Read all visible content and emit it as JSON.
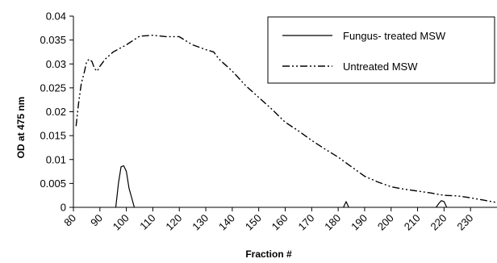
{
  "chart_data": {
    "type": "line",
    "xlabel": "Fraction #",
    "ylabel": "OD at 475 nm",
    "xlim": [
      80,
      240
    ],
    "ylim": [
      0,
      0.04
    ],
    "x_ticks": [
      "80",
      "90",
      "100",
      "110",
      "120",
      "130",
      "140",
      "150",
      "160",
      "170",
      "180",
      "190",
      "200",
      "210",
      "220",
      "230"
    ],
    "y_ticks": [
      "0",
      "0.005",
      "0.01",
      "0.015",
      "0.02",
      "0.025",
      "0.03",
      "0.035",
      "0.04"
    ],
    "grid": false,
    "legend_position": "top-right",
    "series": [
      {
        "name": "Fungus- treated MSW",
        "line_style": "solid",
        "segments": [
          [
            [
              96,
              0
            ],
            [
              97,
              0.005
            ],
            [
              98,
              0.0085
            ],
            [
              99,
              0.0087
            ],
            [
              100,
              0.0075
            ],
            [
              101,
              0.004
            ],
            [
              102,
              0.002
            ],
            [
              103,
              0
            ]
          ],
          [
            [
              182,
              0
            ],
            [
              183,
              0.0012
            ],
            [
              184,
              0
            ]
          ],
          [
            [
              217,
              0
            ],
            [
              218,
              0.0008
            ],
            [
              219,
              0.0014
            ],
            [
              220,
              0.0012
            ],
            [
              221,
              0
            ]
          ]
        ]
      },
      {
        "name": "Untreated MSW",
        "line_style": "dash-dot-dot",
        "points": [
          [
            81,
            0.017
          ],
          [
            82,
            0.022
          ],
          [
            83,
            0.026
          ],
          [
            84,
            0.028
          ],
          [
            85,
            0.0305
          ],
          [
            86,
            0.031
          ],
          [
            87,
            0.0305
          ],
          [
            88,
            0.029
          ],
          [
            89,
            0.0285
          ],
          [
            90,
            0.0295
          ],
          [
            92,
            0.031
          ],
          [
            95,
            0.0325
          ],
          [
            100,
            0.034
          ],
          [
            105,
            0.0358
          ],
          [
            110,
            0.036
          ],
          [
            115,
            0.0357
          ],
          [
            120,
            0.0357
          ],
          [
            122,
            0.035
          ],
          [
            125,
            0.034
          ],
          [
            130,
            0.033
          ],
          [
            133,
            0.0325
          ],
          [
            135,
            0.031
          ],
          [
            140,
            0.0285
          ],
          [
            145,
            0.0255
          ],
          [
            150,
            0.023
          ],
          [
            155,
            0.0205
          ],
          [
            160,
            0.0178
          ],
          [
            165,
            0.016
          ],
          [
            170,
            0.014
          ],
          [
            175,
            0.0122
          ],
          [
            180,
            0.0105
          ],
          [
            185,
            0.0085
          ],
          [
            190,
            0.0065
          ],
          [
            195,
            0.0053
          ],
          [
            200,
            0.0043
          ],
          [
            205,
            0.0038
          ],
          [
            210,
            0.0034
          ],
          [
            215,
            0.003
          ],
          [
            220,
            0.0025
          ],
          [
            225,
            0.0024
          ],
          [
            230,
            0.002
          ],
          [
            235,
            0.0015
          ],
          [
            240,
            0.001
          ]
        ]
      }
    ]
  }
}
